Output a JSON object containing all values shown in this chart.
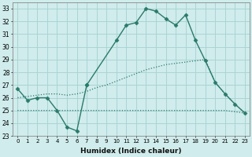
{
  "xlabel": "Humidex (Indice chaleur)",
  "line1_x": [
    0,
    1,
    2,
    3,
    4,
    5,
    6,
    7
  ],
  "line1_y": [
    26.7,
    25.8,
    26.0,
    26.0,
    25.0,
    23.7,
    23.4,
    27.0
  ],
  "line2_x": [
    7,
    10,
    11,
    12,
    13,
    14,
    15,
    16,
    17,
    18,
    19,
    20,
    21,
    22,
    23
  ],
  "line2_y": [
    27.0,
    30.5,
    31.7,
    31.9,
    33.0,
    32.8,
    32.2,
    31.7,
    32.5,
    30.5,
    28.9,
    27.2,
    26.3,
    25.5,
    24.8
  ],
  "line3_x": [
    0,
    1,
    2,
    3,
    4,
    5,
    6,
    7,
    8,
    9,
    10,
    11,
    12,
    13,
    14,
    15,
    16,
    17,
    18,
    19,
    20,
    21,
    22,
    23
  ],
  "line3_y": [
    26.0,
    26.1,
    26.2,
    26.3,
    26.3,
    26.2,
    26.3,
    26.5,
    26.8,
    27.0,
    27.3,
    27.6,
    27.9,
    28.2,
    28.4,
    28.6,
    28.7,
    28.8,
    28.9,
    29.0,
    27.2,
    26.3,
    25.5,
    24.8
  ],
  "line4_x": [
    0,
    1,
    2,
    3,
    4,
    5,
    6,
    7,
    8,
    9,
    10,
    11,
    12,
    13,
    14,
    15,
    16,
    17,
    18,
    19,
    20,
    21,
    22,
    23
  ],
  "line4_y": [
    25.0,
    25.0,
    25.0,
    25.0,
    25.0,
    25.0,
    25.0,
    25.0,
    25.0,
    25.0,
    25.0,
    25.0,
    25.0,
    25.0,
    25.0,
    25.0,
    25.0,
    25.0,
    25.0,
    25.0,
    25.0,
    25.0,
    24.9,
    24.8
  ],
  "color": "#2a7a6a",
  "bg_color": "#d0ecec",
  "grid_color": "#aad4d4",
  "ylim": [
    23,
    33.5
  ],
  "yticks": [
    23,
    24,
    25,
    26,
    27,
    28,
    29,
    30,
    31,
    32,
    33
  ],
  "xticks": [
    0,
    1,
    2,
    3,
    4,
    5,
    6,
    7,
    8,
    9,
    10,
    11,
    12,
    13,
    14,
    15,
    16,
    17,
    18,
    19,
    20,
    21,
    22,
    23
  ],
  "xlim": [
    -0.5,
    23.5
  ]
}
